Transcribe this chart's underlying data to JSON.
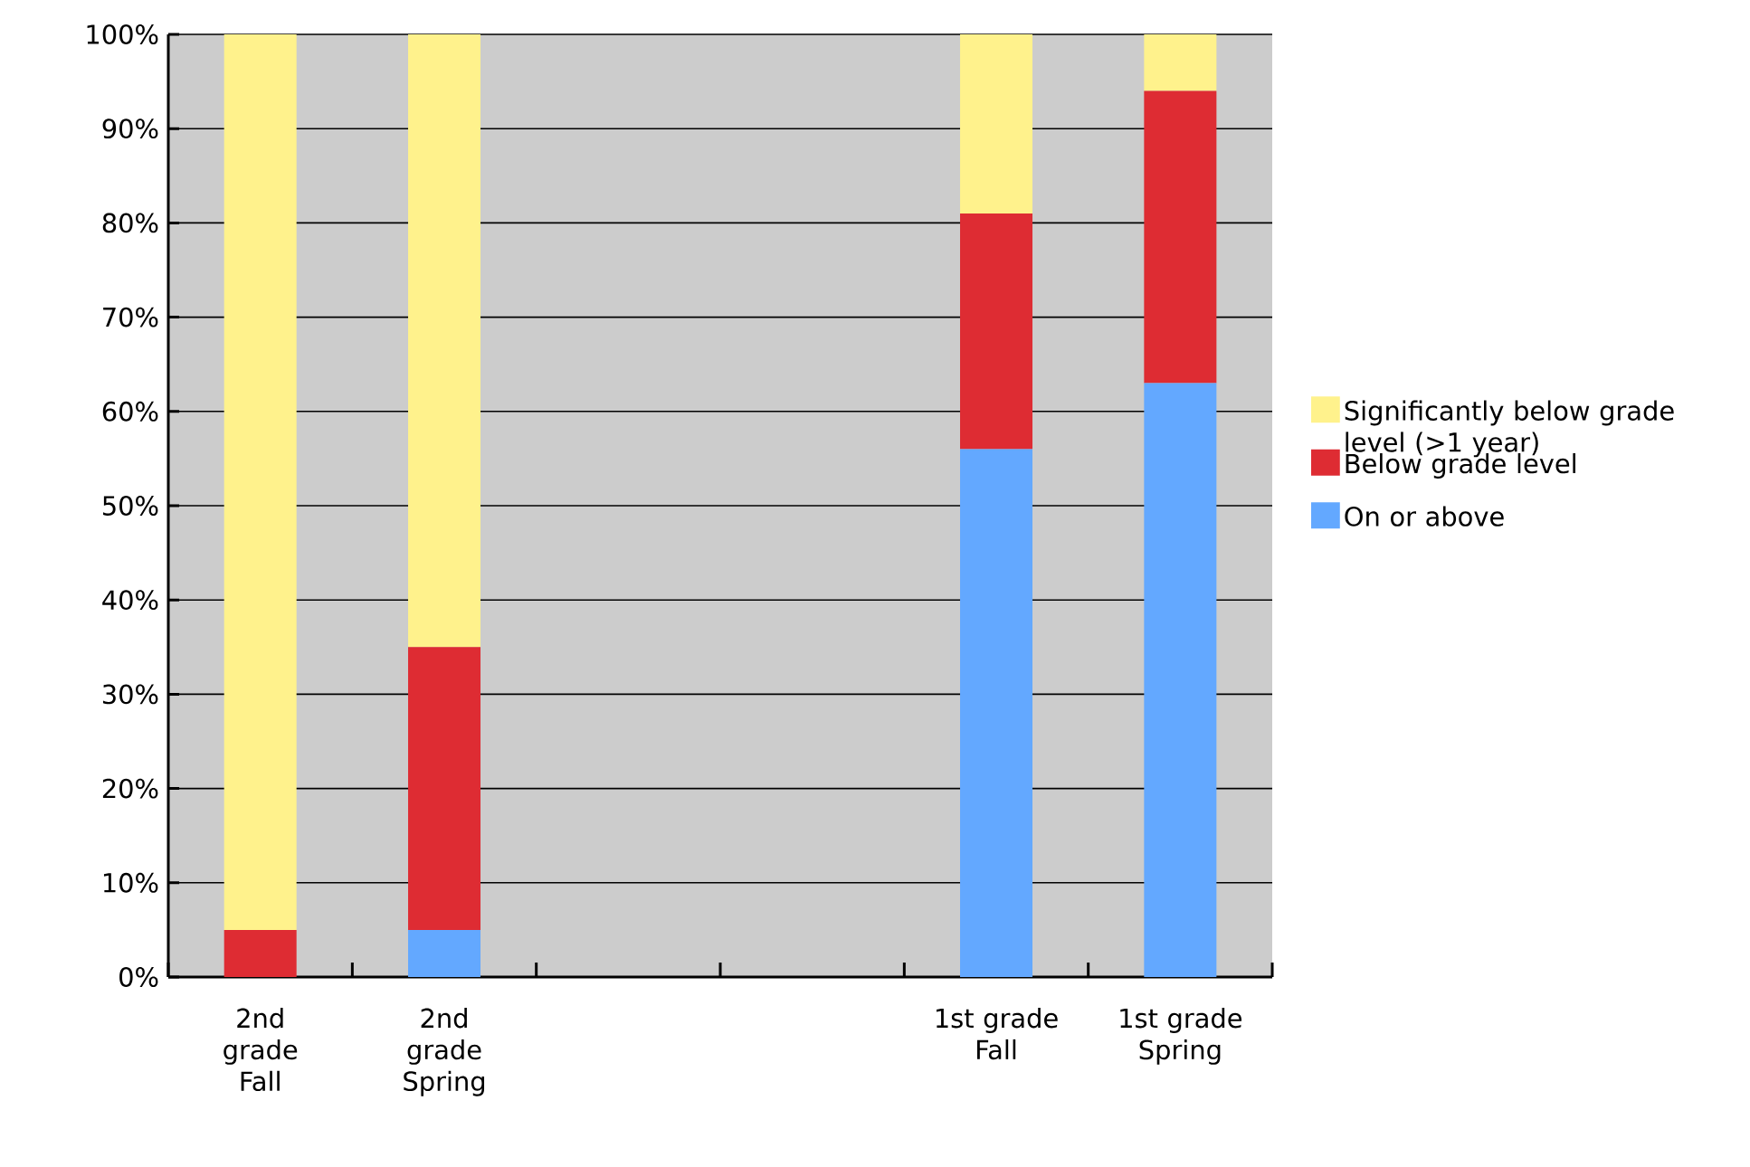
{
  "chart_data": {
    "type": "bar",
    "stacked": true,
    "categories": [
      "2nd grade Fall",
      "2nd grade Spring",
      null,
      null,
      "1st grade Fall",
      "1st grade Spring"
    ],
    "series": [
      {
        "name": "On or above",
        "color": "#63a8ff",
        "values": [
          0,
          5,
          null,
          null,
          56,
          63
        ]
      },
      {
        "name": "Below grade level",
        "color": "#de2c33",
        "values": [
          5,
          30,
          null,
          null,
          25,
          31
        ]
      },
      {
        "name": "Significantly below grade level (>1 year)",
        "color": "#fff28c",
        "values": [
          95,
          65,
          null,
          null,
          19,
          6
        ]
      }
    ],
    "ylim": [
      0,
      100
    ],
    "yticks": [
      {
        "value": 0,
        "label": "0%"
      },
      {
        "value": 10,
        "label": "10%"
      },
      {
        "value": 20,
        "label": "20%"
      },
      {
        "value": 30,
        "label": "30%"
      },
      {
        "value": 40,
        "label": "40%"
      },
      {
        "value": 50,
        "label": "50%"
      },
      {
        "value": 60,
        "label": "60%"
      },
      {
        "value": 70,
        "label": "70%"
      },
      {
        "value": 80,
        "label": "80%"
      },
      {
        "value": 90,
        "label": "90%"
      },
      {
        "value": 100,
        "label": "100%"
      }
    ],
    "grid": "y",
    "legend": "right"
  }
}
